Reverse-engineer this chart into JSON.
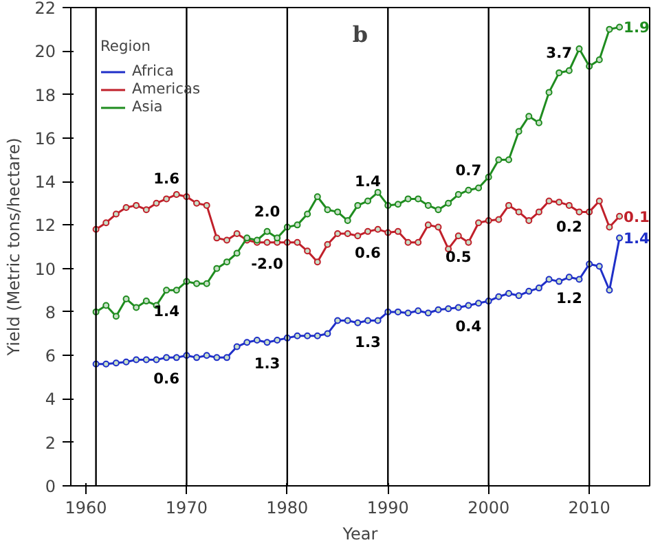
{
  "chart_data": {
    "type": "line",
    "title": "b",
    "xlabel": "Year",
    "ylabel": "Yield (Metric tons/hectare)",
    "legend_title": "Region",
    "legend": "top left",
    "grid": false,
    "marker": "circle",
    "line_style": "solid",
    "x": [
      1961,
      1962,
      1963,
      1964,
      1965,
      1966,
      1967,
      1968,
      1969,
      1970,
      1971,
      1972,
      1973,
      1974,
      1975,
      1976,
      1977,
      1978,
      1979,
      1980,
      1981,
      1982,
      1983,
      1984,
      1985,
      1986,
      1987,
      1988,
      1989,
      1990,
      1991,
      1992,
      1993,
      1994,
      1995,
      1996,
      1997,
      1998,
      1999,
      2000,
      2001,
      2002,
      2003,
      2004,
      2005,
      2006,
      2007,
      2008,
      2009,
      2010,
      2011,
      2012,
      2013
    ],
    "series": [
      {
        "name": "Africa",
        "color": "#1f2fc8",
        "values": [
          5.6,
          5.6,
          5.65,
          5.7,
          5.8,
          5.8,
          5.8,
          5.9,
          5.9,
          6.0,
          5.9,
          6.0,
          5.9,
          5.9,
          6.4,
          6.6,
          6.7,
          6.6,
          6.7,
          6.8,
          6.9,
          6.9,
          6.9,
          7.0,
          7.6,
          7.6,
          7.5,
          7.6,
          7.6,
          8.0,
          8.0,
          7.95,
          8.05,
          7.95,
          8.1,
          8.15,
          8.2,
          8.3,
          8.4,
          8.5,
          8.7,
          8.85,
          8.75,
          8.95,
          9.1,
          9.5,
          9.4,
          9.6,
          9.5,
          10.2,
          10.1,
          9.0,
          11.4
        ]
      },
      {
        "name": "Americas",
        "color": "#c0202a",
        "values": [
          11.8,
          12.1,
          12.5,
          12.8,
          12.9,
          12.7,
          13.0,
          13.2,
          13.4,
          13.3,
          13.0,
          12.9,
          11.4,
          11.3,
          11.6,
          11.3,
          11.2,
          11.2,
          11.2,
          11.2,
          11.2,
          10.8,
          10.3,
          11.1,
          11.6,
          11.6,
          11.5,
          11.7,
          11.8,
          11.65,
          11.7,
          11.2,
          11.2,
          12.0,
          11.9,
          10.9,
          11.5,
          11.2,
          12.1,
          12.2,
          12.25,
          12.9,
          12.6,
          12.2,
          12.6,
          13.1,
          13.05,
          12.9,
          12.6,
          12.6,
          13.1,
          11.9,
          12.4
        ]
      },
      {
        "name": "Asia",
        "color": "#1f8c1f",
        "values": [
          8.0,
          8.3,
          7.8,
          8.6,
          8.2,
          8.5,
          8.3,
          9.0,
          9.0,
          9.4,
          9.3,
          9.3,
          10.0,
          10.3,
          10.7,
          11.4,
          11.3,
          11.7,
          11.4,
          11.9,
          12.0,
          12.5,
          13.3,
          12.7,
          12.6,
          12.2,
          12.9,
          13.1,
          13.5,
          12.9,
          12.95,
          13.2,
          13.2,
          12.9,
          12.7,
          13.0,
          13.4,
          13.6,
          13.7,
          14.2,
          15.0,
          15.0,
          16.3,
          17.0,
          16.7,
          18.1,
          19.0,
          19.1,
          20.1,
          19.3,
          19.6,
          21.0,
          21.1
        ]
      }
    ],
    "xlim": [
      1958.5,
      2016
    ],
    "ylim": [
      0,
      22
    ],
    "xticks": [
      1960,
      1970,
      1980,
      1990,
      2000,
      2010
    ],
    "yticks": [
      0,
      2,
      4,
      6,
      8,
      10,
      12,
      14,
      16,
      18,
      20,
      22
    ],
    "ref_lines": [
      {
        "axis": "x",
        "value": 1961,
        "color": "#000000"
      },
      {
        "axis": "x",
        "value": 1970,
        "color": "#000000"
      },
      {
        "axis": "x",
        "value": 1980,
        "color": "#000000"
      },
      {
        "axis": "x",
        "value": 1990,
        "color": "#000000"
      },
      {
        "axis": "x",
        "value": 2000,
        "color": "#000000"
      },
      {
        "axis": "x",
        "value": 2010,
        "color": "#000000"
      }
    ],
    "annotations": [
      {
        "text": "0.6",
        "x": 1968,
        "y": 5.9
      },
      {
        "text": "1.6",
        "x": 1968,
        "y": 13.2
      },
      {
        "text": "1.4",
        "x": 1968,
        "y": 9.0
      },
      {
        "text": "2.0",
        "x": 1978,
        "y": 11.7
      },
      {
        "text": "-2.0",
        "x": 1978,
        "y": 11.2
      },
      {
        "text": "1.3",
        "x": 1978,
        "y": 6.6
      },
      {
        "text": "1.4",
        "x": 1988,
        "y": 13.1
      },
      {
        "text": "0.6",
        "x": 1988,
        "y": 11.7
      },
      {
        "text": "1.3",
        "x": 1988,
        "y": 7.6
      },
      {
        "text": "0.7",
        "x": 1998,
        "y": 13.6
      },
      {
        "text": "0.5",
        "x": 1997,
        "y": 11.5
      },
      {
        "text": "0.4",
        "x": 1998,
        "y": 8.3
      },
      {
        "text": "3.7",
        "x": 2007,
        "y": 19.0
      },
      {
        "text": "0.2",
        "x": 2008,
        "y": 12.9
      },
      {
        "text": "1.2",
        "x": 2008,
        "y": 9.6
      },
      {
        "text": "1.9",
        "x": 2013,
        "y": 21.1
      },
      {
        "text": "0.1",
        "x": 2013,
        "y": 12.4
      },
      {
        "text": "1.4",
        "x": 2013,
        "y": 11.4
      }
    ]
  }
}
